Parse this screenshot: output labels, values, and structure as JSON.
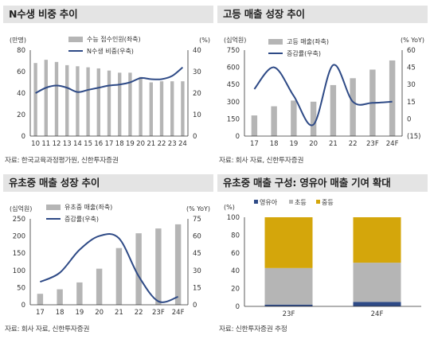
{
  "colors": {
    "bar": "#b5b5b5",
    "line": "#2e4a86",
    "seg_infant": "#2e4a86",
    "seg_elem": "#b5b5b5",
    "seg_mid": "#d4a60b",
    "title_bg": "#e4e4e4"
  },
  "chart_data": [
    {
      "type": "bar+line",
      "title": "N수생 비중 추이",
      "left_unit": "(만명)",
      "right_unit": "(%)",
      "categories": [
        "10",
        "11",
        "12",
        "13",
        "14",
        "15",
        "16",
        "17",
        "18",
        "19",
        "20",
        "21",
        "22",
        "23",
        "24"
      ],
      "series": [
        {
          "name": "수능 접수인원(좌축)",
          "type": "bar",
          "axis": "left",
          "values": [
            68,
            71,
            69,
            66,
            65,
            64,
            63,
            61,
            59,
            59,
            55,
            50,
            51,
            51,
            51
          ]
        },
        {
          "name": "N수생 비중(우축)",
          "type": "line",
          "axis": "right",
          "values": [
            20,
            22.5,
            23.5,
            22.5,
            20.5,
            21.5,
            22.5,
            23.5,
            24,
            25,
            27,
            26.5,
            26.5,
            28,
            32
          ]
        }
      ],
      "ylim_left": [
        0,
        80
      ],
      "yticks_left": [
        0,
        20,
        40,
        60,
        80
      ],
      "ylim_right": [
        0,
        40
      ],
      "yticks_right": [
        0,
        10,
        20,
        30,
        40
      ],
      "source": "자료: 한국교육과정평가원, 신한투자증권"
    },
    {
      "type": "bar+line",
      "title": "고등 매출 성장 추이",
      "left_unit": "(십억원)",
      "right_unit": "(% YoY)",
      "categories": [
        "17",
        "18",
        "19",
        "20",
        "21",
        "22",
        "23F",
        "24F"
      ],
      "series": [
        {
          "name": "고등 매출(좌축)",
          "type": "bar",
          "axis": "left",
          "values": [
            180,
            260,
            310,
            300,
            445,
            505,
            580,
            660
          ]
        },
        {
          "name": "증감률(우축)",
          "type": "line",
          "axis": "right",
          "values": [
            26,
            45,
            20,
            -5,
            47,
            15,
            14,
            15
          ]
        }
      ],
      "ylim_left": [
        0,
        750
      ],
      "yticks_left": [
        0,
        150,
        300,
        450,
        600,
        750
      ],
      "ylim_right": [
        -15,
        60
      ],
      "yticks_right": [
        "(15)",
        "0",
        "15",
        "30",
        "45",
        "60"
      ],
      "source": "자료: 회사 자료, 신한투자증권"
    },
    {
      "type": "bar+line",
      "title": "유초중 매출 성장 추이",
      "left_unit": "(십억원)",
      "right_unit": "(% YoY)",
      "categories": [
        "17",
        "18",
        "19",
        "20",
        "21",
        "22",
        "23F",
        "24F"
      ],
      "series": [
        {
          "name": "유초중 매출(좌축)",
          "type": "bar",
          "axis": "left",
          "values": [
            32,
            45,
            65,
            105,
            165,
            208,
            222,
            234
          ]
        },
        {
          "name": "증감률(우축)",
          "type": "line",
          "axis": "right",
          "values": [
            20,
            28,
            48,
            60,
            58,
            25,
            3,
            7
          ]
        }
      ],
      "ylim_left": [
        0,
        250
      ],
      "yticks_left": [
        0,
        50,
        100,
        150,
        200,
        250
      ],
      "ylim_right": [
        0,
        75
      ],
      "yticks_right": [
        0,
        15,
        30,
        45,
        60,
        75
      ],
      "source": "자료: 회사 자료, 신한투자증권"
    },
    {
      "type": "stacked-bar",
      "title": "유초중 매출 구성: 영유아 매출 기여 확대",
      "left_unit": "(%)",
      "categories": [
        "23F",
        "24F"
      ],
      "series": [
        {
          "name": "영유아",
          "values": [
            2,
            5
          ]
        },
        {
          "name": "초등",
          "values": [
            41,
            44
          ]
        },
        {
          "name": "중등",
          "values": [
            57,
            51
          ]
        }
      ],
      "ylim": [
        0,
        100
      ],
      "yticks": [
        0,
        20,
        40,
        60,
        80,
        100
      ],
      "source": "자료: 신한투자증권 추정"
    }
  ]
}
